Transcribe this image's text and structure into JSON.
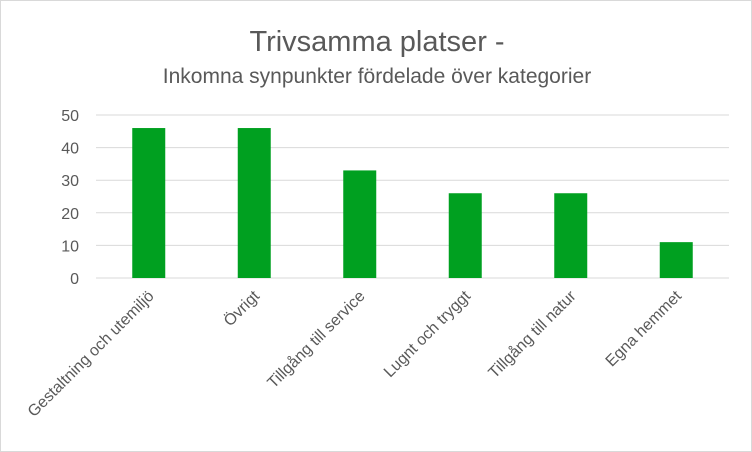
{
  "chart_data": {
    "type": "bar",
    "title": "Trivsamma platser -",
    "subtitle": "Inkomna synpunkter fördelade över kategorier",
    "categories": [
      "Gestaltning och utemiljö",
      "Övrigt",
      "Tillgång till service",
      "Lugnt och tryggt",
      "Tillgång till natur",
      "Egna hemmet"
    ],
    "values": [
      46,
      46,
      33,
      26,
      26,
      11
    ],
    "ylim": [
      0,
      50
    ],
    "yticks": [
      0,
      10,
      20,
      30,
      40,
      50
    ],
    "xlabel": "",
    "ylabel": "",
    "grid": true,
    "legend": "none",
    "colors": {
      "bar": "#00a020",
      "grid": "#d9d9d9",
      "text": "#595959"
    }
  }
}
